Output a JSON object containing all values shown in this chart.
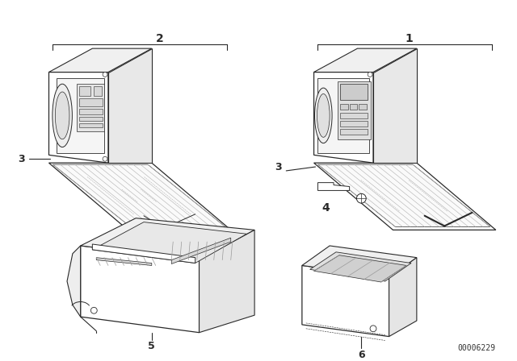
{
  "background_color": "#ffffff",
  "diagram_id": "00006229",
  "line_color": "#2a2a2a",
  "fig_width": 6.4,
  "fig_height": 4.48,
  "dpi": 100
}
